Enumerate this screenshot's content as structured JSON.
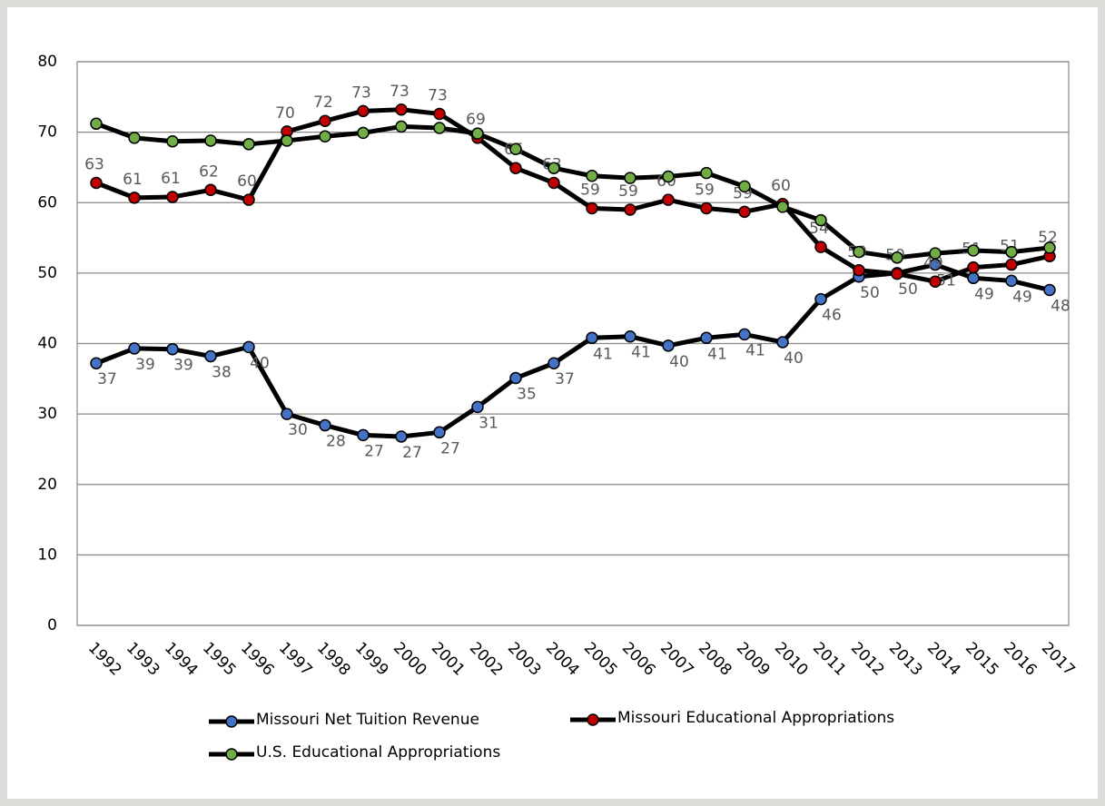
{
  "chart_data": {
    "type": "line",
    "categories": [
      "1992",
      "1993",
      "1994",
      "1995",
      "1996",
      "1997",
      "1998",
      "1999",
      "2000",
      "2001",
      "2002",
      "2003",
      "2004",
      "2005",
      "2006",
      "2007",
      "2008",
      "2009",
      "2010",
      "2011",
      "2012",
      "2013",
      "2014",
      "2015",
      "2016",
      "2017"
    ],
    "series": [
      {
        "name": "Missouri Net Tuition Revenue",
        "color": "#4472c4",
        "values": [
          37.2,
          39.3,
          39.2,
          38.2,
          39.5,
          30,
          28.4,
          27,
          26.8,
          27.4,
          31,
          35.1,
          37.2,
          40.8,
          41,
          39.7,
          40.8,
          41.3,
          40.2,
          46.3,
          49.5,
          50,
          51.2,
          49.3,
          48.9,
          47.6
        ],
        "value_labels": [
          "37",
          "39",
          "39",
          "38",
          "40",
          "30",
          "28",
          "27",
          "27",
          "27",
          "31",
          "35",
          "37",
          "41",
          "41",
          "40",
          "41",
          "41",
          "40",
          "46",
          "50",
          "50",
          "51",
          "49",
          "49",
          "48"
        ]
      },
      {
        "name": "Missouri Educational Appropriations",
        "color": "#c00000",
        "values": [
          62.8,
          60.7,
          60.8,
          61.8,
          60.4,
          70.1,
          71.6,
          73,
          73.2,
          72.6,
          69.2,
          64.9,
          62.8,
          59.2,
          59,
          60.4,
          59.2,
          58.7,
          59.8,
          53.7,
          50.4,
          49.9,
          48.8,
          50.8,
          51.2,
          52.4
        ],
        "value_labels": [
          "63",
          "61",
          "61",
          "62",
          "60",
          "70",
          "72",
          "73",
          "73",
          "73",
          "69",
          "65",
          "63",
          "59",
          "59",
          "60",
          "59",
          "59",
          "60",
          "54",
          "50",
          "50",
          "49",
          "51",
          "51",
          "52"
        ]
      },
      {
        "name": "U.S. Educational Appropriations",
        "color": "#70ad47",
        "values": [
          71.2,
          69.2,
          68.7,
          68.8,
          68.3,
          68.8,
          69.4,
          69.9,
          70.8,
          70.6,
          69.8,
          67.6,
          64.9,
          63.8,
          63.5,
          63.7,
          64.2,
          62.3,
          59.4,
          57.5,
          53,
          52.2,
          52.8,
          53.2,
          53,
          53.6
        ]
      }
    ],
    "ylim": [
      0,
      80
    ],
    "yticks": [
      0,
      10,
      20,
      30,
      40,
      50,
      60,
      70,
      80
    ],
    "grid": true
  }
}
